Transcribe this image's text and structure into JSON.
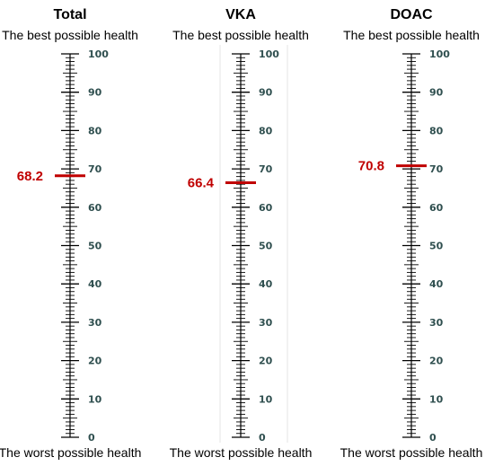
{
  "chart_data": {
    "type": "vertical_scale",
    "ylim": [
      0,
      100
    ],
    "major_ticks": [
      0,
      10,
      20,
      30,
      40,
      50,
      60,
      70,
      80,
      90,
      100
    ],
    "minor_tick_step": 1,
    "colors": {
      "marker": "#c00000",
      "ruler": "#000000",
      "tick_label": "#2f4f4f",
      "divider": "#e6e6e6"
    },
    "panels": [
      {
        "title": "Total",
        "top_label": "The best possible health",
        "bottom_label": "The worst possible health",
        "value": 68.2,
        "value_label": "68.2"
      },
      {
        "title": "VKA",
        "top_label": "The best possible health",
        "bottom_label": "The worst possible health",
        "value": 66.4,
        "value_label": "66.4"
      },
      {
        "title": "DOAC",
        "top_label": "The best possible health",
        "bottom_label": "The worst possible health",
        "value": 70.8,
        "value_label": "70.8"
      }
    ]
  }
}
